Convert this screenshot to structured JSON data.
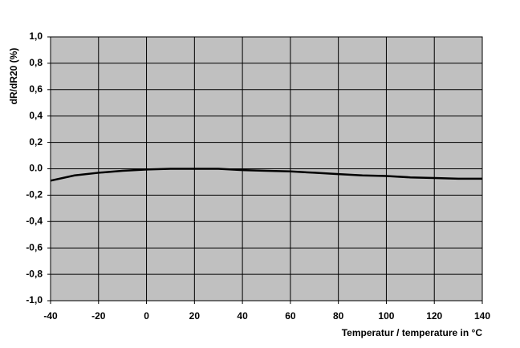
{
  "chart_data": {
    "type": "line",
    "y_label": "dR/dR20 (%)",
    "x_label": "Temperatur / temperature in °C",
    "x": [
      -40,
      -30,
      -20,
      -10,
      0,
      10,
      20,
      30,
      40,
      50,
      60,
      70,
      80,
      90,
      100,
      110,
      120,
      130,
      140
    ],
    "series": [
      {
        "color": "#000000",
        "values": [
          -0.09,
          -0.05,
          -0.03,
          -0.015,
          -0.005,
          0,
          0,
          0,
          -0.01,
          -0.015,
          -0.02,
          -0.03,
          -0.04,
          -0.05,
          -0.055,
          -0.065,
          -0.07,
          -0.075,
          -0.075
        ]
      }
    ],
    "xlim": [
      -40,
      140
    ],
    "xticks": [
      -40,
      -20,
      0,
      20,
      40,
      60,
      80,
      100,
      120,
      140
    ],
    "ylim": [
      -1,
      1
    ],
    "yticks": [
      {
        "value": -1,
        "label": "-1,0"
      },
      {
        "value": -0.8,
        "label": "-0,8"
      },
      {
        "value": -0.6,
        "label": "-0,6"
      },
      {
        "value": -0.4,
        "label": "-0,4"
      },
      {
        "value": -0.2,
        "label": "-0,2"
      },
      {
        "value": 0,
        "label": "0.0"
      },
      {
        "value": 0.2,
        "label": "0,2"
      },
      {
        "value": 0.4,
        "label": "0,4"
      },
      {
        "value": 0.6,
        "label": "0,6"
      },
      {
        "value": 0.8,
        "label": "0,8"
      },
      {
        "value": 1,
        "label": "1,0"
      }
    ],
    "grid": true,
    "plot_background": "#c0c0c0"
  }
}
